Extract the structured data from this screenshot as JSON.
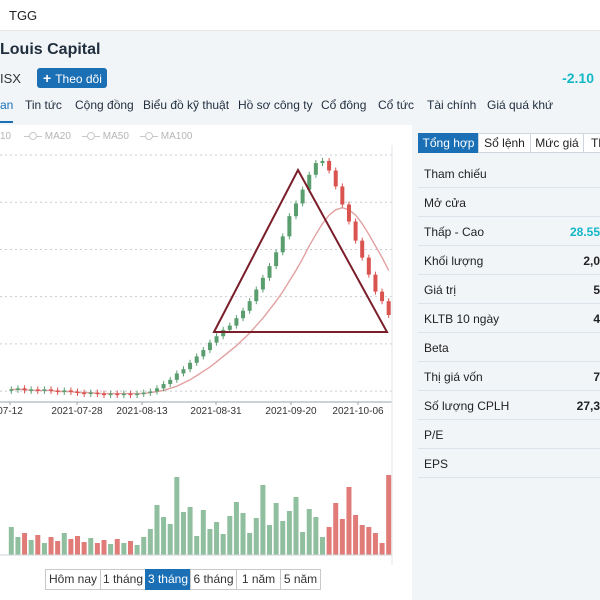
{
  "topbar": {
    "symbol": "TGG"
  },
  "company": {
    "name": "Louis Capital",
    "exchange": "ISX",
    "follow_label": "Theo dõi",
    "change": "-2.10"
  },
  "tabs": [
    {
      "label": "an"
    },
    {
      "label": "Tin tức"
    },
    {
      "label": "Cộng đồng"
    },
    {
      "label": "Biểu đồ kỹ thuật"
    },
    {
      "label": "Hồ sơ công ty"
    },
    {
      "label": "Cổ đông"
    },
    {
      "label": "Cổ tức"
    },
    {
      "label": "Tài chính"
    },
    {
      "label": "Giá quá khứ"
    }
  ],
  "legend": [
    "10",
    "MA20",
    "MA50",
    "MA100"
  ],
  "ranges": [
    "Hôm nay",
    "1 tháng",
    "3 tháng",
    "6 tháng",
    "1 năm",
    "5 năm"
  ],
  "active_range": 2,
  "side_tabs": [
    "Tổng hợp",
    "Sổ lệnh",
    "Mức giá",
    "Th"
  ],
  "summary": [
    {
      "label": "Tham chiếu",
      "value": ""
    },
    {
      "label": "Mở cửa",
      "value": ""
    },
    {
      "label": "Thấp - Cao",
      "value": "28.55",
      "accent": true
    },
    {
      "label": "Khối lượng",
      "value": "2,0"
    },
    {
      "label": "Giá trị",
      "value": "5"
    },
    {
      "label": "KLTB 10 ngày",
      "value": "4"
    },
    {
      "label": "Beta",
      "value": ""
    },
    {
      "label": "Thị giá vốn",
      "value": "7"
    },
    {
      "label": "Số lượng CPLH",
      "value": "27,3"
    },
    {
      "label": "P/E",
      "value": ""
    },
    {
      "label": "EPS",
      "value": ""
    }
  ],
  "colors": {
    "up": "#5a9e6f",
    "down": "#d9534f",
    "ma": "#e3a0a0",
    "triangle": "#7a1f2a",
    "accent": "#1a6fb5",
    "cyan": "#13b7c6"
  },
  "chart_data": {
    "type": "candlestick",
    "x_ticks": [
      "07-12",
      "2021-07-28",
      "2021-08-13",
      "2021-08-31",
      "2021-09-20",
      "2021-10-06"
    ],
    "close": [
      13.0,
      13.1,
      12.9,
      13.0,
      12.9,
      13.0,
      12.9,
      12.8,
      12.9,
      12.8,
      12.7,
      12.6,
      12.7,
      12.6,
      12.5,
      12.6,
      12.5,
      12.6,
      12.5,
      12.6,
      12.7,
      12.8,
      13.1,
      13.5,
      13.9,
      14.5,
      14.9,
      15.5,
      16.1,
      16.7,
      17.4,
      18.0,
      18.6,
      19.0,
      19.7,
      20.4,
      21.3,
      22.4,
      23.5,
      24.6,
      25.9,
      27.4,
      29.3,
      30.5,
      31.8,
      33.2,
      34.3,
      34.5,
      33.6,
      32.1,
      30.4,
      28.8,
      27.0,
      25.4,
      23.8,
      22.2,
      21.3,
      20.0
    ],
    "volume": [
      28,
      18,
      22,
      15,
      20,
      12,
      18,
      14,
      22,
      16,
      19,
      13,
      17,
      12,
      15,
      11,
      16,
      12,
      14,
      10,
      18,
      26,
      50,
      38,
      31,
      78,
      43,
      48,
      19,
      45,
      26,
      33,
      21,
      39,
      53,
      42,
      22,
      37,
      70,
      30,
      52,
      34,
      44,
      58,
      23,
      46,
      38,
      18,
      28,
      52,
      36,
      68,
      40,
      30,
      28,
      22,
      12,
      80
    ],
    "ma_line": [
      13.0,
      13.0,
      13.0,
      12.9,
      12.9,
      12.9,
      12.9,
      12.8,
      12.8,
      12.8,
      12.7,
      12.7,
      12.7,
      12.6,
      12.6,
      12.6,
      12.6,
      12.6,
      12.6,
      12.6,
      12.6,
      12.7,
      12.8,
      12.9,
      13.1,
      13.3,
      13.6,
      13.9,
      14.3,
      14.7,
      15.1,
      15.6,
      16.1,
      16.6,
      17.1,
      17.7,
      18.3,
      19.0,
      19.7,
      20.5,
      21.3,
      22.2,
      23.2,
      24.2,
      25.3,
      26.5,
      27.6,
      28.6,
      29.4,
      29.9,
      30.1,
      29.9,
      29.4,
      28.6,
      27.6,
      26.5,
      25.4,
      24.2
    ],
    "triangle": {
      "left": [
        2021.66,
        20.0
      ],
      "apex": [
        2021.72,
        35.0
      ],
      "right": [
        2021.78,
        20.0
      ]
    },
    "ylim": [
      12,
      36
    ]
  }
}
